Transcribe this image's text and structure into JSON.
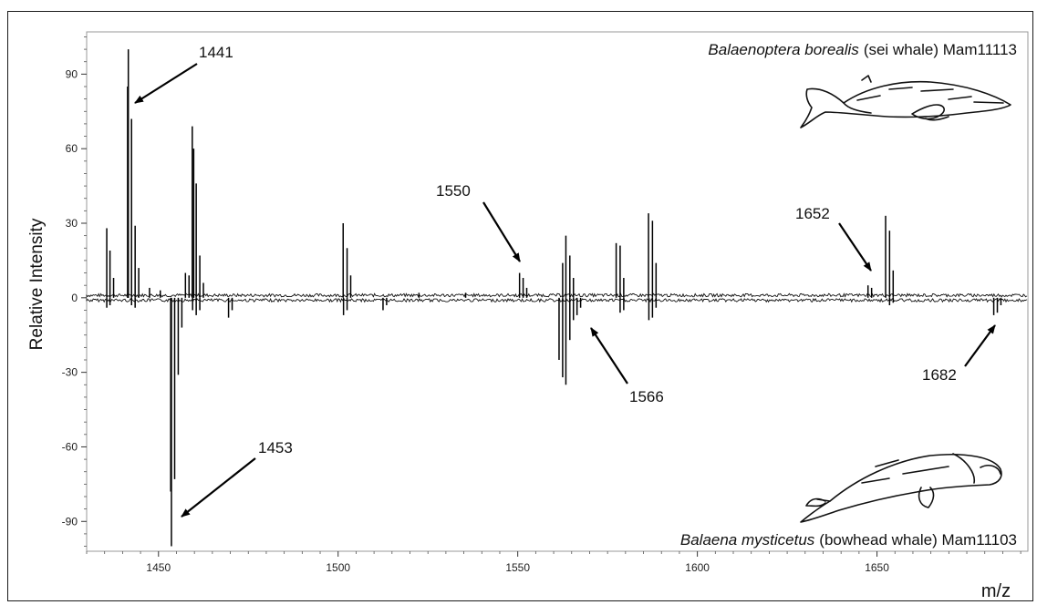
{
  "chart_data": {
    "type": "mirror-spectrum",
    "xlabel": "m/z",
    "ylabel": "Relative Intensity",
    "xlim": [
      1430,
      1692
    ],
    "ylim": [
      -102,
      107
    ],
    "x_ticks": [
      1450,
      1500,
      1550,
      1600,
      1650
    ],
    "y_ticks": [
      90,
      60,
      30,
      0,
      -30,
      -60,
      -90
    ],
    "top_species": {
      "genus_species": "Balaenoptera borealis",
      "rest": "(sei whale) Mam11113"
    },
    "bottom_species": {
      "genus_species": "Balaena mysticetus",
      "rest": "(bowhead whale) Mam11103"
    },
    "series": [
      {
        "name": "Balaenoptera borealis (sei whale) Mam11113",
        "direction": "up",
        "peaks": [
          [
            1435.6,
            28
          ],
          [
            1436.5,
            19
          ],
          [
            1437.5,
            8
          ],
          [
            1441.4,
            85
          ],
          [
            1441.6,
            100
          ],
          [
            1442.5,
            72
          ],
          [
            1443.5,
            29
          ],
          [
            1444.5,
            12
          ],
          [
            1447.5,
            4
          ],
          [
            1450.5,
            3
          ],
          [
            1457.5,
            10
          ],
          [
            1458.5,
            9
          ],
          [
            1459.4,
            69
          ],
          [
            1459.8,
            60
          ],
          [
            1460.5,
            46
          ],
          [
            1461.5,
            17
          ],
          [
            1462.5,
            6
          ],
          [
            1501.4,
            30
          ],
          [
            1502.5,
            20
          ],
          [
            1503.5,
            9
          ],
          [
            1522.5,
            2
          ],
          [
            1535.5,
            2
          ],
          [
            1550.5,
            10
          ],
          [
            1551.5,
            8
          ],
          [
            1552.5,
            4
          ],
          [
            1562.5,
            14
          ],
          [
            1563.4,
            25
          ],
          [
            1564.5,
            17
          ],
          [
            1565.5,
            8
          ],
          [
            1577.4,
            22
          ],
          [
            1578.5,
            21
          ],
          [
            1579.5,
            8
          ],
          [
            1586.4,
            34
          ],
          [
            1587.5,
            31
          ],
          [
            1588.5,
            14
          ],
          [
            1647.5,
            5
          ],
          [
            1648.5,
            4
          ],
          [
            1652.4,
            33
          ],
          [
            1653.5,
            27
          ],
          [
            1654.5,
            11
          ]
        ]
      },
      {
        "name": "Balaena mysticetus (bowhead whale) Mam11103",
        "direction": "down",
        "peaks": [
          [
            1435.6,
            4
          ],
          [
            1436.5,
            3
          ],
          [
            1442.5,
            3
          ],
          [
            1443.5,
            4
          ],
          [
            1453.4,
            78
          ],
          [
            1453.6,
            100
          ],
          [
            1454.5,
            73
          ],
          [
            1455.5,
            31
          ],
          [
            1456.5,
            12
          ],
          [
            1459.5,
            5
          ],
          [
            1460.5,
            7
          ],
          [
            1461.5,
            5
          ],
          [
            1469.5,
            8
          ],
          [
            1470.5,
            5
          ],
          [
            1501.5,
            7
          ],
          [
            1502.5,
            5
          ],
          [
            1512.5,
            5
          ],
          [
            1513.5,
            3
          ],
          [
            1561.5,
            25
          ],
          [
            1562.5,
            32
          ],
          [
            1563.4,
            35
          ],
          [
            1564.5,
            17
          ],
          [
            1565.5,
            9
          ],
          [
            1566.5,
            7
          ],
          [
            1567.5,
            4
          ],
          [
            1578.5,
            6
          ],
          [
            1579.5,
            5
          ],
          [
            1586.5,
            9
          ],
          [
            1587.5,
            8
          ],
          [
            1588.5,
            4
          ],
          [
            1653.5,
            3
          ],
          [
            1654.5,
            2
          ],
          [
            1682.5,
            7
          ],
          [
            1683.5,
            6
          ],
          [
            1684.5,
            3
          ]
        ]
      }
    ],
    "annotations": [
      {
        "label": "1441",
        "x": 1441.6,
        "side": "up"
      },
      {
        "label": "1453",
        "x": 1453.6,
        "side": "down"
      },
      {
        "label": "1550",
        "x": 1550.5,
        "side": "up"
      },
      {
        "label": "1566",
        "x": 1566.5,
        "side": "down"
      },
      {
        "label": "1652",
        "x": 1648.0,
        "side": "up"
      },
      {
        "label": "1682",
        "x": 1682.5,
        "side": "down"
      }
    ]
  },
  "icons": {
    "top": "sei-whale-icon",
    "bottom": "bowhead-whale-icon"
  }
}
